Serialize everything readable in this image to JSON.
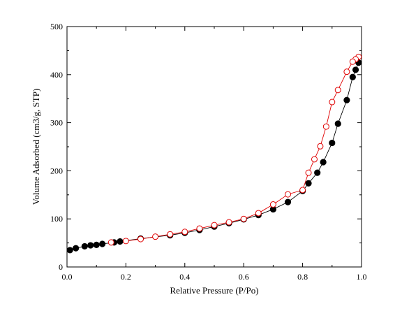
{
  "chart_data": {
    "type": "scatter",
    "xlabel": "Relative Pressure (P/Po)",
    "ylabel": "Volume Adsorbed (cm3/g, STP)",
    "xlim": [
      0.0,
      1.0
    ],
    "ylim": [
      0,
      500
    ],
    "xticks": [
      0.0,
      0.2,
      0.4,
      0.6,
      0.8,
      1.0
    ],
    "xtick_labels": [
      "0.0",
      "0.2",
      "0.4",
      "0.6",
      "0.8",
      "1.0"
    ],
    "yticks": [
      0,
      100,
      200,
      300,
      400,
      500
    ],
    "ytick_labels": [
      "0",
      "100",
      "200",
      "300",
      "400",
      "500"
    ],
    "grid": false,
    "series": [
      {
        "marker": "filled-circle",
        "color": "#000000",
        "line_color": "#000000",
        "x": [
          0.01,
          0.03,
          0.06,
          0.08,
          0.1,
          0.12,
          0.16,
          0.18,
          0.25,
          0.35,
          0.4,
          0.45,
          0.5,
          0.55,
          0.6,
          0.65,
          0.7,
          0.75,
          0.8,
          0.82,
          0.85,
          0.87,
          0.9,
          0.92,
          0.95,
          0.97,
          0.98,
          0.99
        ],
        "y": [
          35,
          39,
          43,
          45,
          46,
          48,
          51,
          53,
          59,
          66,
          71,
          77,
          84,
          91,
          99,
          108,
          120,
          135,
          158,
          174,
          196,
          218,
          258,
          298,
          347,
          395,
          410,
          425
        ]
      },
      {
        "marker": "open-circle",
        "color": "#e00000",
        "line_color": "#e00000",
        "x": [
          0.99,
          0.98,
          0.97,
          0.95,
          0.92,
          0.9,
          0.88,
          0.86,
          0.84,
          0.82,
          0.8,
          0.75,
          0.7,
          0.65,
          0.6,
          0.55,
          0.5,
          0.45,
          0.4,
          0.35,
          0.3,
          0.25,
          0.2,
          0.15
        ],
        "y": [
          437,
          432,
          427,
          406,
          368,
          343,
          292,
          251,
          224,
          196,
          160,
          151,
          130,
          112,
          100,
          93,
          87,
          80,
          73,
          68,
          63,
          58,
          54,
          51
        ]
      }
    ]
  }
}
